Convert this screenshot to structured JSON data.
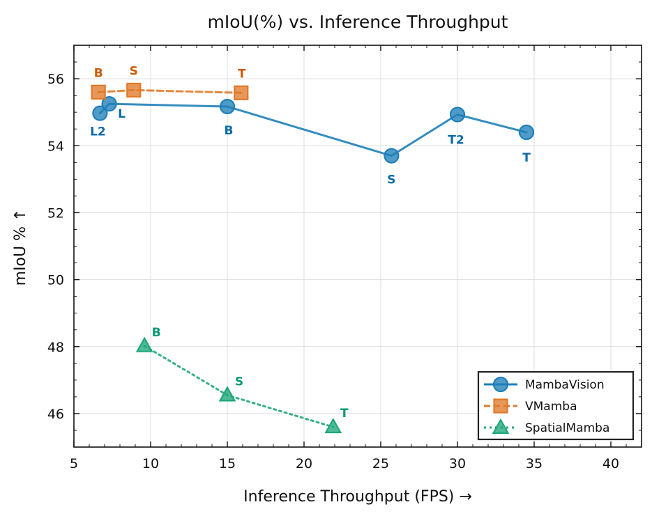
{
  "chart_data": {
    "type": "line",
    "title": "mIoU(%) vs. Inference Throughput",
    "xlabel": "Inference Throughput (FPS) →",
    "ylabel": "mIoU % ↑",
    "xlim": [
      5,
      42
    ],
    "ylim": [
      45,
      57
    ],
    "xticks": [
      5,
      10,
      15,
      20,
      25,
      30,
      35,
      40
    ],
    "yticks": [
      46,
      48,
      50,
      52,
      54,
      56
    ],
    "xtick_labels": [
      "5",
      "10",
      "15",
      "20",
      "25",
      "30",
      "35",
      "40"
    ],
    "ytick_labels": [
      "46",
      "48",
      "50",
      "52",
      "54",
      "56"
    ],
    "grid": true,
    "legend_position": "bottom-right",
    "series": [
      {
        "name": "MambaVision",
        "color": "#1f7fb8",
        "label_color": "#0a6aa8",
        "marker": "circle",
        "linestyle": "solid",
        "points": [
          {
            "x": 6.7,
            "y": 54.97,
            "label": "L2"
          },
          {
            "x": 7.3,
            "y": 55.25,
            "label": "L"
          },
          {
            "x": 15.0,
            "y": 55.17,
            "label": "B"
          },
          {
            "x": 25.7,
            "y": 53.7,
            "label": "S"
          },
          {
            "x": 30.0,
            "y": 54.93,
            "label": "T2"
          },
          {
            "x": 34.5,
            "y": 54.4,
            "label": "T"
          }
        ]
      },
      {
        "name": "VMamba",
        "color": "#e07a2a",
        "label_color": "#cc5a00",
        "marker": "square",
        "linestyle": "dashed",
        "points": [
          {
            "x": 6.6,
            "y": 55.6,
            "label": "B"
          },
          {
            "x": 8.9,
            "y": 55.66,
            "label": "S"
          },
          {
            "x": 15.9,
            "y": 55.58,
            "label": "T"
          }
        ]
      },
      {
        "name": "SpatialMamba",
        "color": "#1fa67a",
        "label_color": "#079a72",
        "marker": "triangle",
        "linestyle": "dotted",
        "points": [
          {
            "x": 9.6,
            "y": 48.02,
            "label": "B"
          },
          {
            "x": 15.0,
            "y": 46.55,
            "label": "S"
          },
          {
            "x": 21.9,
            "y": 45.6,
            "label": "T"
          }
        ]
      }
    ]
  }
}
